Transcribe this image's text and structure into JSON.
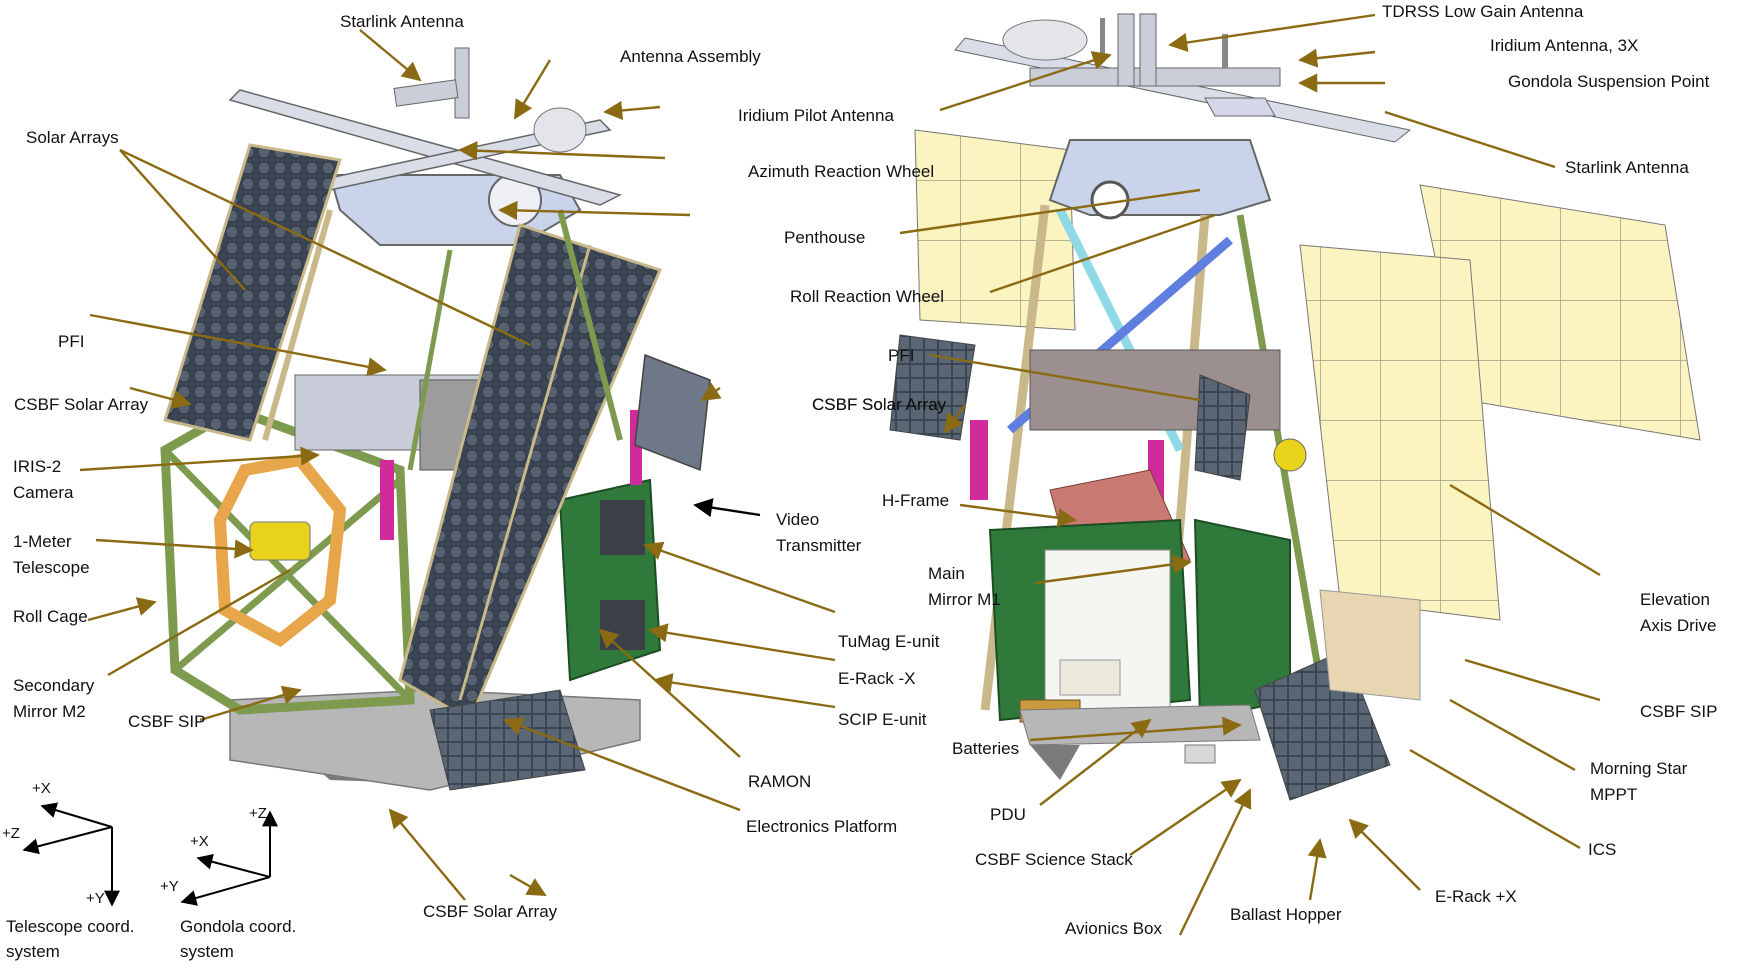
{
  "labels_left": {
    "starlink_antenna": "Starlink Antenna",
    "antenna_assembly": "Antenna Assembly",
    "iridium_pilot_antenna": "Iridium Pilot Antenna",
    "azimuth_reaction_wheel": "Azimuth Reaction Wheel",
    "solar_arrays": "Solar Arrays",
    "penthouse": "Penthouse",
    "pfi": "PFI",
    "csbf_solar_array_1": "CSBF Solar Array",
    "csbf_solar_array_2": "CSBF Solar Array",
    "iris2_camera_1": "IRIS-2",
    "iris2_camera_2": "Camera",
    "video_transmitter_1": "Video",
    "video_transmitter_2": "Transmitter",
    "one_meter_telescope_1": "1-Meter",
    "one_meter_telescope_2": "Telescope",
    "roll_cage": "Roll Cage",
    "tumag_e_unit": "TuMag E-unit",
    "e_rack_minus_x": "E-Rack -X",
    "secondary_mirror_1": "Secondary",
    "secondary_mirror_2": "Mirror M2",
    "scip_e_unit": "SCIP E-unit",
    "csbf_sip": "CSBF SIP",
    "ramon": "RAMON",
    "electronics_platform": "Electronics Platform",
    "csbf_solar_array_bottom": "CSBF Solar Array"
  },
  "labels_right": {
    "tdrss_low_gain_antenna": "TDRSS Low Gain Antenna",
    "iridium_antenna_3x": "Iridium Antenna, 3X",
    "gondola_suspension_point": "Gondola Suspension Point",
    "starlink_antenna": "Starlink Antenna",
    "roll_reaction_wheel": "Roll Reaction Wheel",
    "pfi": "PFI",
    "csbf_solar_array": "CSBF Solar Array",
    "h_frame": "H-Frame",
    "main_mirror_1": "Main",
    "main_mirror_2": "Mirror M1",
    "elevation_axis_drive_1": "Elevation",
    "elevation_axis_drive_2": "Axis Drive",
    "csbf_sip": "CSBF SIP",
    "batteries": "Batteries",
    "morning_star_mppt_1": "Morning Star",
    "morning_star_mppt_2": "MPPT",
    "pdu": "PDU",
    "ics": "ICS",
    "csbf_science_stack": "CSBF Science Stack",
    "e_rack_plus_x": "E-Rack +X",
    "ballast_hopper": "Ballast Hopper",
    "avionics_box": "Avionics Box"
  },
  "coords": {
    "telescope": {
      "x_label": "+X",
      "z_label": "+Z",
      "y_label": "+Y",
      "caption_1": "Telescope coord.",
      "caption_2": "system"
    },
    "gondola": {
      "z_label": "+Z",
      "x_label": "+X",
      "y_label": "+Y",
      "caption_1": "Gondola coord.",
      "caption_2": "system"
    }
  },
  "colors": {
    "leader": "#8a6a12",
    "panel_dark": "#3b4654",
    "panel_cell": "#5a6674",
    "panel_light": "#fbf3c0",
    "frame_green": "#7d9a4e",
    "frame_dark_green": "#2f7a3a",
    "frame_tan": "#c9b98a",
    "magenta": "#d12b9b",
    "penthouse": "#c9d4ea",
    "gray_box": "#8c8c8c",
    "orange_frame": "#e8a64b",
    "yellow": "#e8d21a",
    "mirror_pink": "#c97a72",
    "blue_strut": "#5f7fe0",
    "cyan_strut": "#8fd8e6"
  }
}
